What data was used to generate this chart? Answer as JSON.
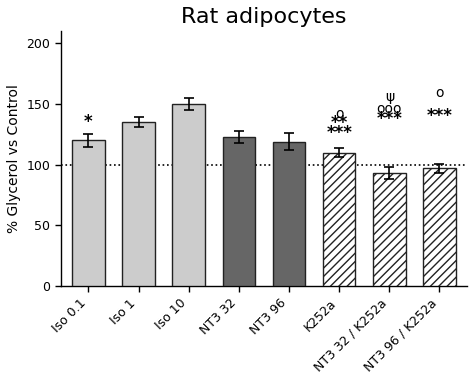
{
  "title": "Rat adipocytes",
  "ylabel": "% Glycerol vs Control",
  "categories": [
    "Iso 0.1",
    "Iso 1",
    "Iso 10",
    "NT3 32",
    "NT3 96",
    "K252a",
    "NT3 32 / K252a",
    "NT3 96 / K252a"
  ],
  "values": [
    120,
    135,
    150,
    123,
    119,
    110,
    93,
    97
  ],
  "errors": [
    5,
    4,
    5,
    5,
    7,
    4,
    5,
    4
  ],
  "ylim": [
    0,
    210
  ],
  "yticks": [
    0,
    50,
    100,
    150,
    200
  ],
  "hline_y": 100,
  "bar_face_colors": [
    "#cccccc",
    "#cccccc",
    "#cccccc",
    "#666666",
    "#666666",
    "#ffffff",
    "#ffffff",
    "#ffffff"
  ],
  "bar_edge_colors": [
    "#222222",
    "#222222",
    "#222222",
    "#222222",
    "#222222",
    "#222222",
    "#222222",
    "#222222"
  ],
  "hatches": [
    null,
    null,
    null,
    null,
    null,
    "////",
    "////",
    "////"
  ],
  "background_color": "#ffffff",
  "fontsize_title": 16,
  "fontsize_labels": 10,
  "fontsize_ticks": 9,
  "fontsize_annot_star": 12,
  "fontsize_annot_sym": 10
}
